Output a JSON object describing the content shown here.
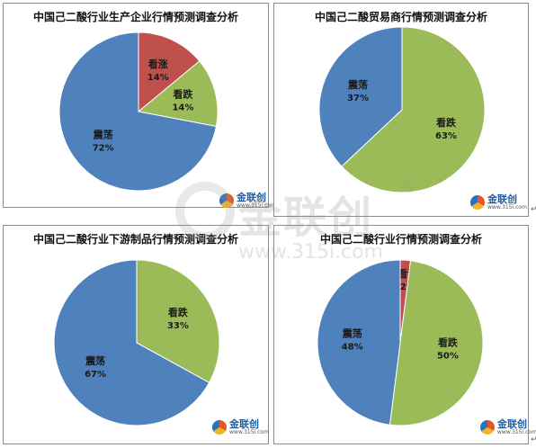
{
  "colors": {
    "rise": "#c0504d",
    "fall": "#9bbb59",
    "oscillate": "#4f81bd"
  },
  "logo": {
    "name": "金联创",
    "url": "www.315i.com"
  },
  "watermark": {
    "name": "金联创",
    "reg": "®",
    "url": "www.315i.com"
  },
  "chart_data": [
    {
      "type": "pie",
      "title": "中国己二酸行业生产企业行情预测调查分析",
      "slices": [
        {
          "label": "看涨",
          "value": 14,
          "text": "14%"
        },
        {
          "label": "看跌",
          "value": 14,
          "text": "14%"
        },
        {
          "label": "震荡",
          "value": 72,
          "text": "72%"
        }
      ]
    },
    {
      "type": "pie",
      "title": "中国己二酸贸易商行情预测调查分析",
      "slices": [
        {
          "label": "看跌",
          "value": 63,
          "text": "63%"
        },
        {
          "label": "震荡",
          "value": 37,
          "text": "37%"
        }
      ]
    },
    {
      "type": "pie",
      "title": "中国己二酸行业下游制品行情预测调查分析",
      "slices": [
        {
          "label": "看跌",
          "value": 33,
          "text": "33%"
        },
        {
          "label": "震荡",
          "value": 67,
          "text": "67%"
        }
      ]
    },
    {
      "type": "pie",
      "title": "中国己二酸行业行情预测调查分析",
      "slices": [
        {
          "label": "看涨",
          "value": 2,
          "text": "2%"
        },
        {
          "label": "看跌",
          "value": 50,
          "text": "50%"
        },
        {
          "label": "震荡",
          "value": 48,
          "text": "48%"
        }
      ]
    }
  ]
}
